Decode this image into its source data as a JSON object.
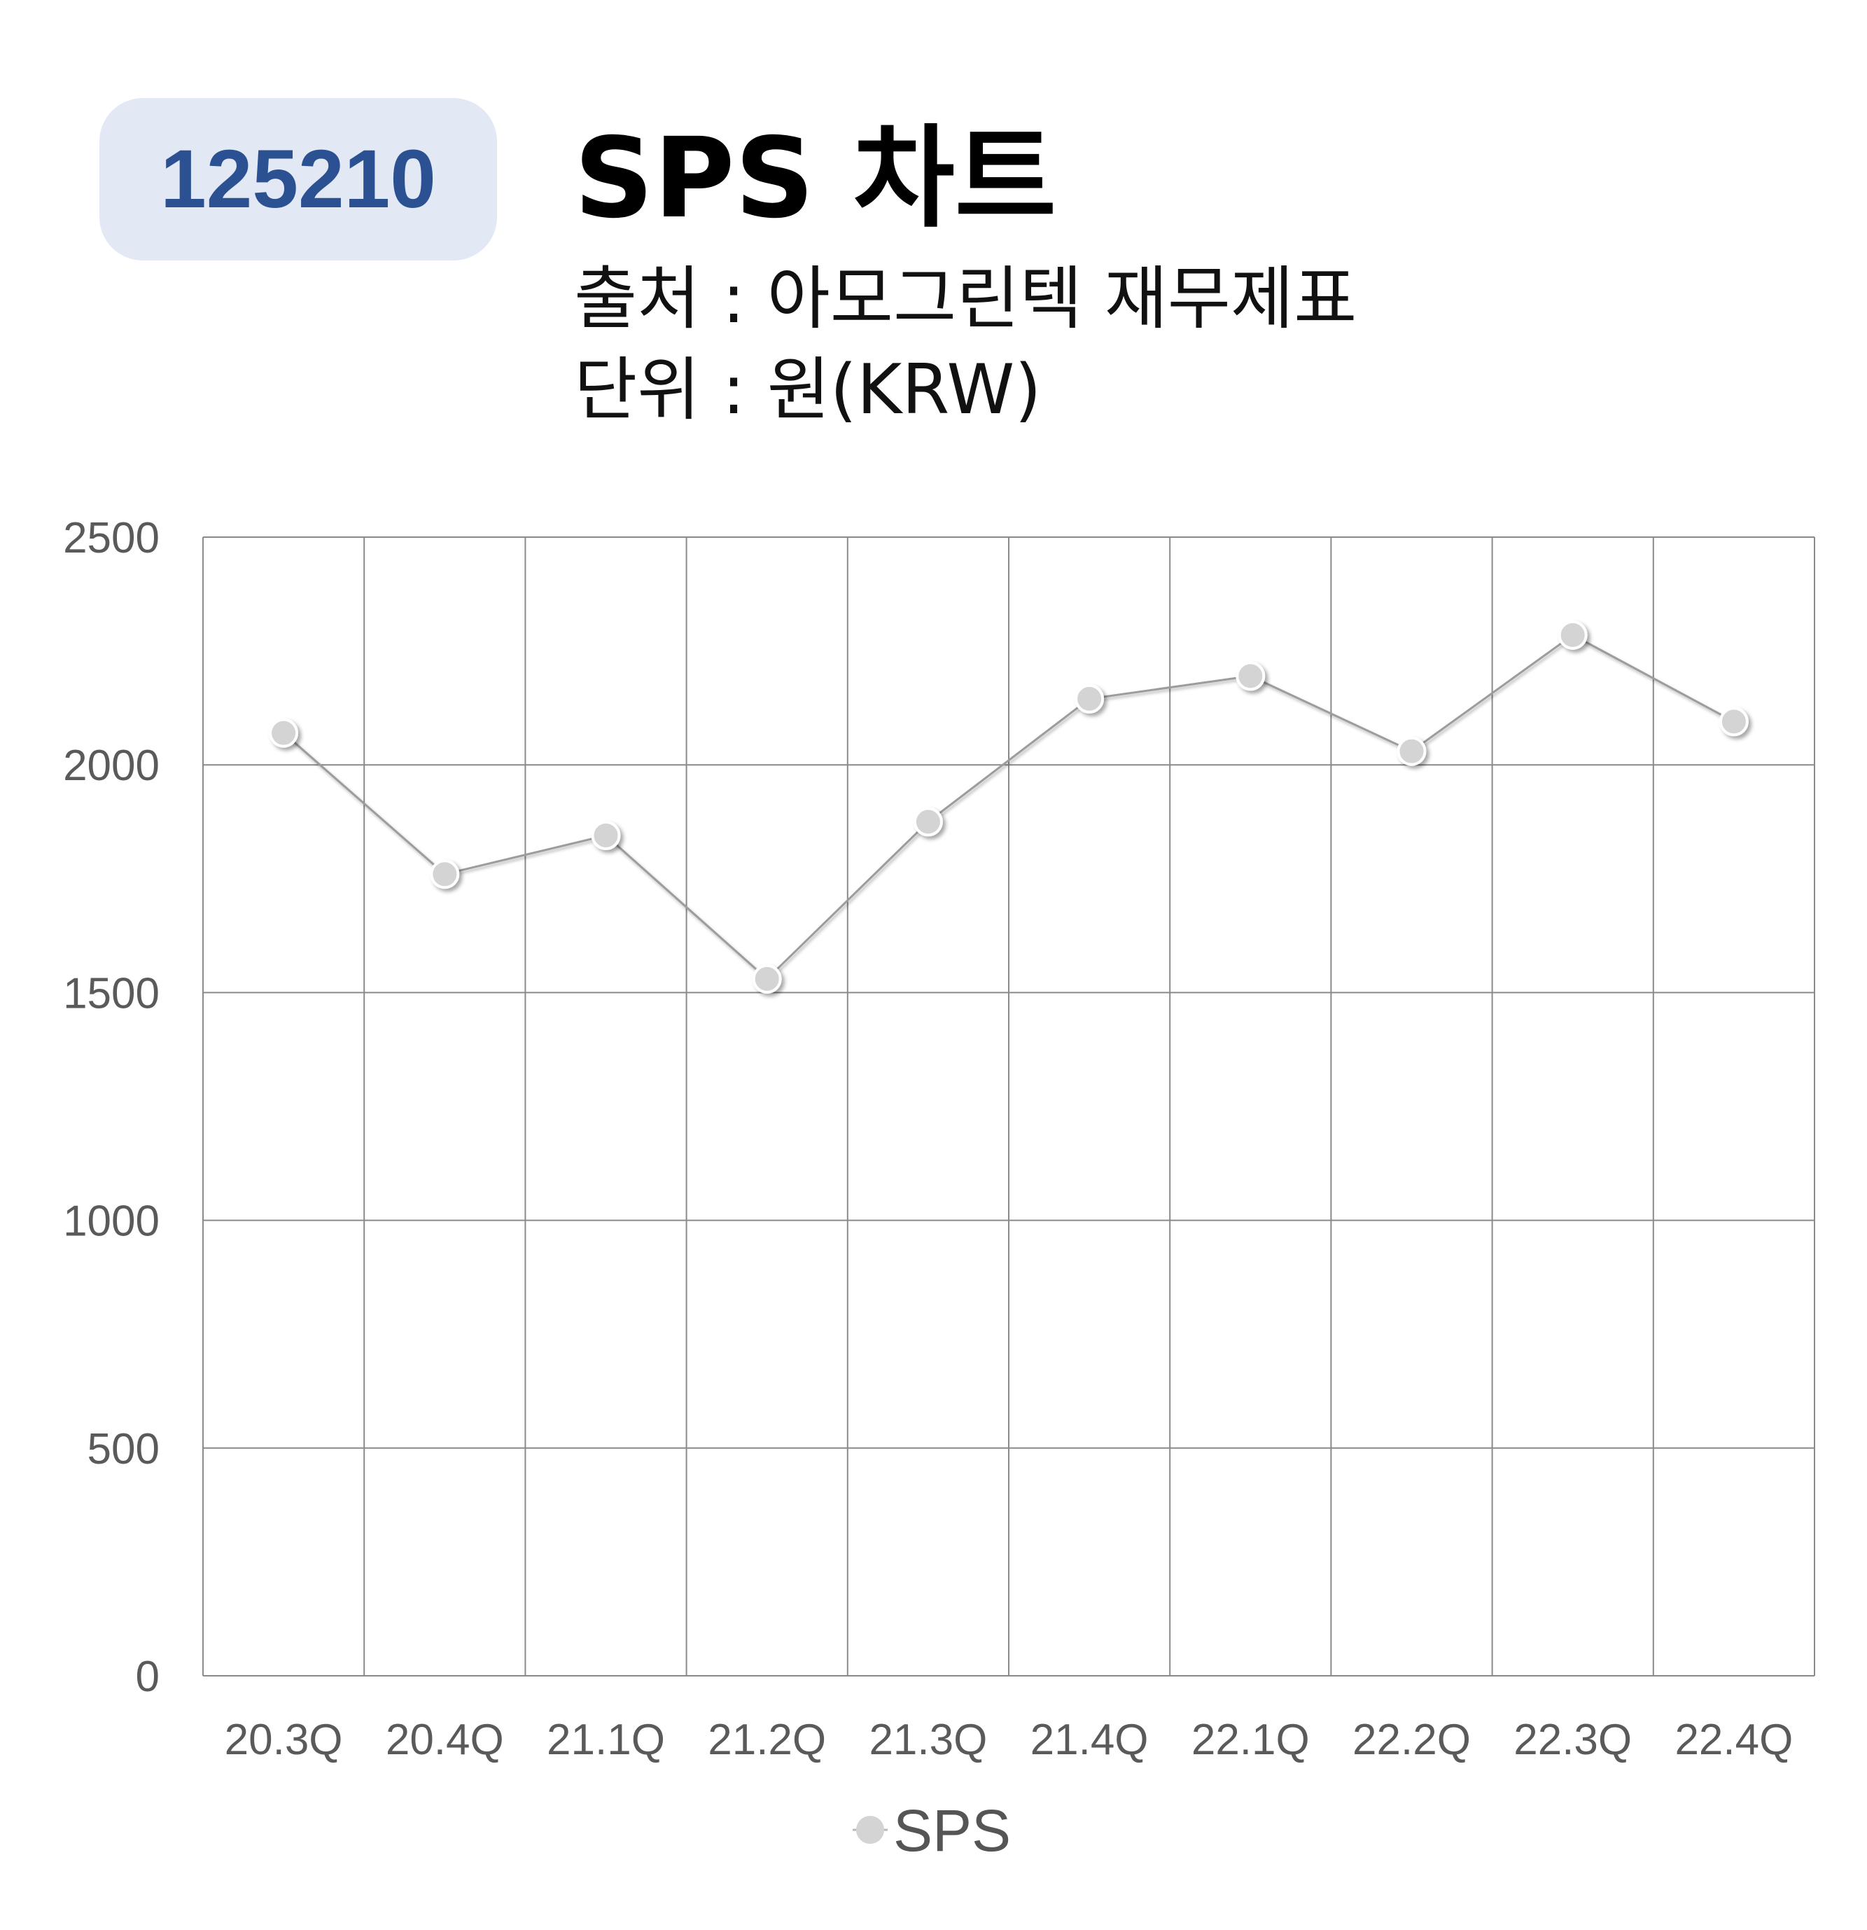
{
  "header": {
    "code": "125210",
    "title": "SPS 차트",
    "source": "출처 : 아모그린텍 재무제표",
    "unit": "단위 : 원(KRW)"
  },
  "chart_data": {
    "type": "line",
    "categories": [
      "20.3Q",
      "20.4Q",
      "21.1Q",
      "21.2Q",
      "21.3Q",
      "21.4Q",
      "22.1Q",
      "22.2Q",
      "22.3Q",
      "22.4Q"
    ],
    "series": [
      {
        "name": "SPS",
        "values": [
          2070,
          1760,
          1845,
          1530,
          1875,
          2145,
          2195,
          2030,
          2285,
          2095
        ],
        "color": "#d4d4d4"
      }
    ],
    "y_ticks": [
      "0",
      "500",
      "1000",
      "1500",
      "2000",
      "2500"
    ],
    "ylim": [
      0,
      2500
    ],
    "grid": true,
    "legend_position": "bottom"
  }
}
